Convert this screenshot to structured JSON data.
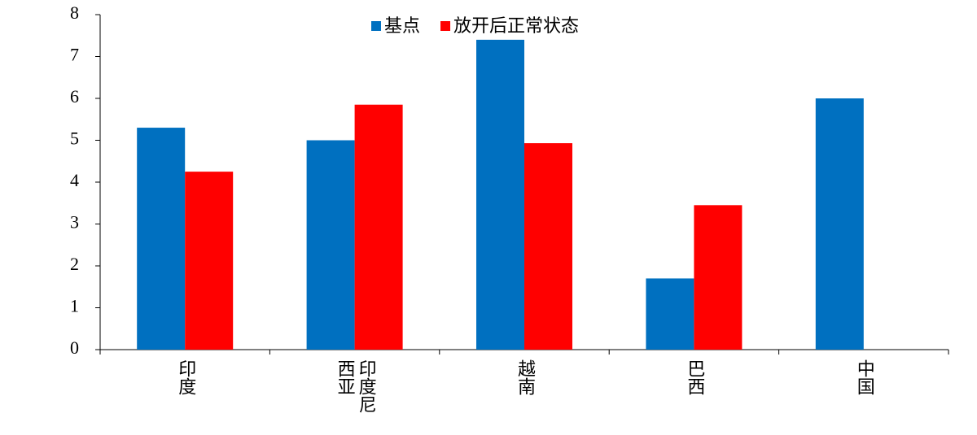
{
  "chart_data": {
    "type": "bar",
    "categories": [
      "印度",
      "印度尼西亚",
      "越南",
      "巴西",
      "中国"
    ],
    "series": [
      {
        "name": "基点",
        "color": "#0070c0",
        "values": [
          5.3,
          5.0,
          7.4,
          1.7,
          6.0
        ]
      },
      {
        "name": "放开后正常状态",
        "color": "#ff0000",
        "values": [
          4.25,
          5.85,
          4.93,
          3.45,
          null
        ]
      }
    ],
    "ylim": [
      0,
      8
    ],
    "yticks": [
      0,
      1,
      2,
      3,
      4,
      5,
      6,
      7,
      8
    ],
    "grid": false,
    "legend": "top"
  }
}
